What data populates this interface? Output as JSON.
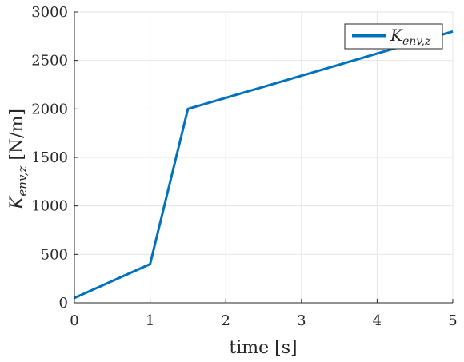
{
  "chart_data": {
    "type": "line",
    "xlabel": "time [s]",
    "ylabel": {
      "main": "K",
      "sub": "env,z",
      "unit": " [N/m]"
    },
    "xlim": [
      0,
      5
    ],
    "ylim": [
      0,
      3000
    ],
    "xticks": [
      0,
      1,
      2,
      3,
      4,
      5
    ],
    "yticks": [
      0,
      500,
      1000,
      1500,
      2000,
      2500,
      3000
    ],
    "xtick_labels": [
      "0",
      "1",
      "2",
      "3",
      "4",
      "5"
    ],
    "ytick_labels": [
      "0",
      "500",
      "1000",
      "1500",
      "2000",
      "2500",
      "3000"
    ],
    "grid": true,
    "legend_position": "top-right",
    "series": [
      {
        "name": {
          "main": "K",
          "sub": "env,z"
        },
        "color": "#0072BD",
        "x": [
          0,
          1,
          1.5,
          5
        ],
        "y": [
          50,
          400,
          2000,
          2800
        ]
      }
    ]
  }
}
